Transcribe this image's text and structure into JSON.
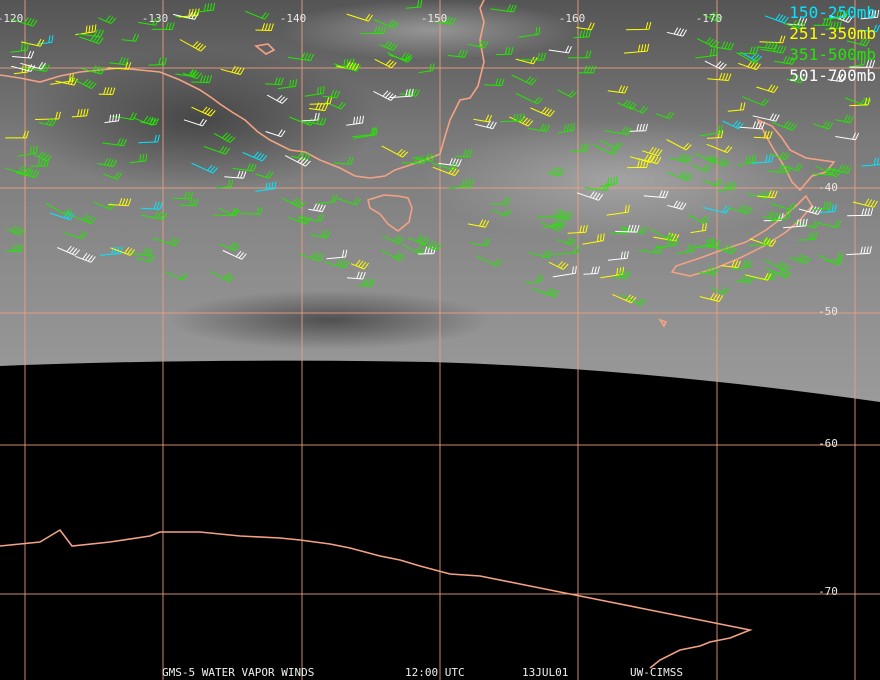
{
  "legend": [
    {
      "label": "150-250mb",
      "color": "#00e8ff"
    },
    {
      "label": "251-350mb",
      "color": "#ffff00"
    },
    {
      "label": "351-500mb",
      "color": "#22e800"
    },
    {
      "label": "501-700mb",
      "color": "#ffffff"
    }
  ],
  "longitude_labels": [
    "-120",
    "-130",
    "-140",
    "-150",
    "-160",
    "-170"
  ],
  "latitude_labels": [
    "-40",
    "-50",
    "-60",
    "-70"
  ],
  "footer": [
    "GMS-5 WATER VAPOR WINDS",
    "12:00 UTC",
    "13JUL01",
    "UW-CIMSS"
  ]
}
